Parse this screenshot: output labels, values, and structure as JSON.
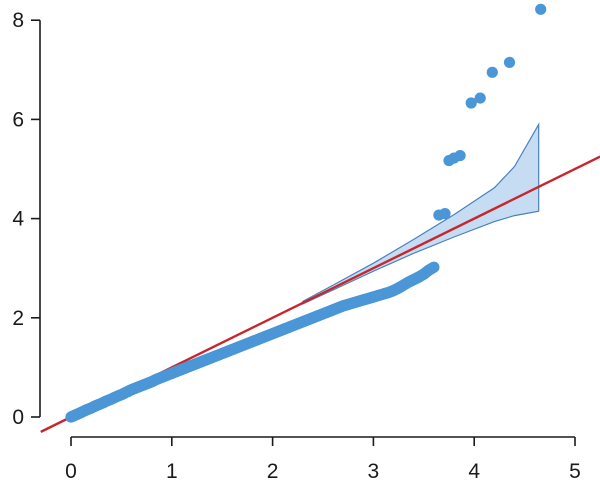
{
  "chart_data": {
    "type": "scatter",
    "title": "",
    "xlabel": "",
    "ylabel": "",
    "xlim": [
      -0.3,
      5.25
    ],
    "ylim": [
      -0.2,
      8.3
    ],
    "grid": false,
    "x_ticks": [
      0,
      1,
      2,
      3,
      4,
      5
    ],
    "y_ticks": [
      0,
      2,
      4,
      6,
      8
    ],
    "colors": {
      "points": "#4b96d6",
      "reference_line": "#c8262c",
      "band_fill": "#bcd6f0",
      "band_edge": "#4a82bc"
    },
    "reference_line": {
      "slope": 1.0,
      "intercept": 0.0,
      "x_range": [
        -0.3,
        5.25
      ]
    },
    "confidence_band": {
      "x": [
        2.3,
        2.6,
        3.0,
        3.4,
        3.8,
        4.2,
        4.4,
        4.64
      ],
      "lower": [
        2.28,
        2.56,
        2.94,
        3.3,
        3.63,
        3.94,
        4.06,
        4.15
      ],
      "upper": [
        2.33,
        2.66,
        3.1,
        3.58,
        4.08,
        4.62,
        5.05,
        5.9
      ]
    },
    "curve_points": [
      [
        0.0,
        0.0
      ],
      [
        0.05,
        0.045
      ],
      [
        0.1,
        0.09
      ],
      [
        0.15,
        0.14
      ],
      [
        0.2,
        0.18
      ],
      [
        0.25,
        0.23
      ],
      [
        0.3,
        0.27
      ],
      [
        0.35,
        0.32
      ],
      [
        0.4,
        0.36
      ],
      [
        0.45,
        0.41
      ],
      [
        0.5,
        0.45
      ],
      [
        0.55,
        0.5
      ],
      [
        0.6,
        0.55
      ],
      [
        0.65,
        0.59
      ],
      [
        0.7,
        0.63
      ],
      [
        0.75,
        0.67
      ],
      [
        0.8,
        0.71
      ],
      [
        0.85,
        0.76
      ],
      [
        0.9,
        0.8
      ],
      [
        0.95,
        0.84
      ],
      [
        1.0,
        0.88
      ],
      [
        1.05,
        0.92
      ],
      [
        1.1,
        0.96
      ],
      [
        1.15,
        1.0
      ],
      [
        1.2,
        1.04
      ],
      [
        1.25,
        1.08
      ],
      [
        1.3,
        1.12
      ],
      [
        1.35,
        1.16
      ],
      [
        1.4,
        1.2
      ],
      [
        1.45,
        1.24
      ],
      [
        1.5,
        1.28
      ],
      [
        1.55,
        1.32
      ],
      [
        1.6,
        1.36
      ],
      [
        1.65,
        1.4
      ],
      [
        1.7,
        1.44
      ],
      [
        1.75,
        1.48
      ],
      [
        1.8,
        1.52
      ],
      [
        1.85,
        1.56
      ],
      [
        1.9,
        1.6
      ],
      [
        1.95,
        1.64
      ],
      [
        2.0,
        1.68
      ],
      [
        2.05,
        1.72
      ],
      [
        2.1,
        1.76
      ],
      [
        2.15,
        1.8
      ],
      [
        2.2,
        1.84
      ],
      [
        2.25,
        1.88
      ],
      [
        2.3,
        1.92
      ],
      [
        2.35,
        1.96
      ],
      [
        2.4,
        2.0
      ],
      [
        2.45,
        2.04
      ],
      [
        2.5,
        2.08
      ],
      [
        2.55,
        2.12
      ],
      [
        2.6,
        2.16
      ],
      [
        2.65,
        2.2
      ],
      [
        2.7,
        2.24
      ],
      [
        2.75,
        2.27
      ],
      [
        2.8,
        2.3
      ],
      [
        2.85,
        2.33
      ],
      [
        2.9,
        2.36
      ],
      [
        2.95,
        2.39
      ],
      [
        3.0,
        2.42
      ],
      [
        3.05,
        2.45
      ],
      [
        3.1,
        2.48
      ],
      [
        3.15,
        2.51
      ],
      [
        3.2,
        2.55
      ],
      [
        3.25,
        2.6
      ],
      [
        3.3,
        2.66
      ],
      [
        3.35,
        2.72
      ],
      [
        3.4,
        2.77
      ],
      [
        3.45,
        2.82
      ],
      [
        3.5,
        2.88
      ],
      [
        3.55,
        2.96
      ],
      [
        3.6,
        3.02
      ]
    ],
    "tail_points": [
      [
        3.65,
        4.07
      ],
      [
        3.71,
        4.1
      ],
      [
        3.75,
        5.17
      ],
      [
        3.8,
        5.22
      ],
      [
        3.86,
        5.27
      ],
      [
        3.97,
        6.33
      ],
      [
        4.06,
        6.43
      ],
      [
        4.18,
        6.95
      ],
      [
        4.35,
        7.15
      ],
      [
        4.66,
        8.22
      ]
    ]
  }
}
